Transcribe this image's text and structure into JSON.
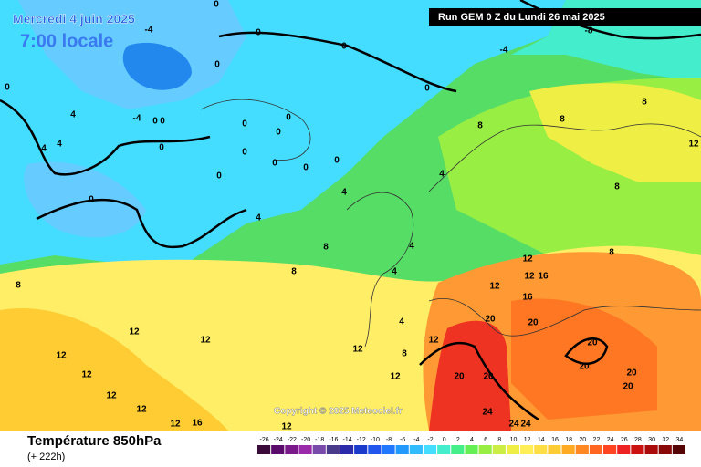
{
  "header": {
    "date": "Mercredi 4 juin 2025",
    "time": "7:00 locale",
    "run": "Run GEM 0 Z du Lundi 26 mai 2025"
  },
  "copyright": "Copyright © 2025 Meteociel.fr",
  "footer": {
    "title": "Température 850hPa",
    "lead": "(+ 222h)"
  },
  "colorbar": {
    "labels": [
      -26,
      -24,
      -22,
      -20,
      -18,
      -16,
      -14,
      -12,
      -10,
      -8,
      -6,
      -4,
      -2,
      0,
      2,
      4,
      6,
      8,
      10,
      12,
      14,
      16,
      18,
      20,
      22,
      24,
      26,
      28,
      30,
      32,
      34
    ],
    "colors": [
      "#3a0a3a",
      "#5a0a6a",
      "#7a1a8a",
      "#9a2aaa",
      "#7a4aaa",
      "#4a3a8a",
      "#2a2aaa",
      "#1a3acc",
      "#2255ee",
      "#2277ff",
      "#2299ff",
      "#33bbff",
      "#44ddff",
      "#44eecc",
      "#44ee88",
      "#66ee55",
      "#99ee44",
      "#ccee44",
      "#eeee44",
      "#ffee55",
      "#ffdd44",
      "#ffcc33",
      "#ffaa22",
      "#ff8822",
      "#ff6622",
      "#ff4422",
      "#ee2222",
      "#cc1111",
      "#aa0a0a",
      "#880808",
      "#550505"
    ]
  },
  "isotherm_labels": [
    -4,
    0,
    0,
    0,
    0,
    0,
    -4,
    -8,
    -4,
    0,
    0,
    0,
    0,
    0,
    0,
    0,
    0,
    0,
    0,
    0,
    0,
    4,
    4,
    4,
    8,
    8,
    8,
    8,
    8,
    4,
    4,
    8,
    12,
    12,
    12,
    12,
    12,
    12,
    12,
    16,
    12,
    12,
    8,
    4,
    12,
    12,
    12,
    12,
    12,
    16,
    16,
    20,
    20,
    20,
    20,
    20,
    20,
    20,
    20,
    24,
    24,
    24,
    8,
    8,
    12,
    0,
    4,
    4,
    4
  ]
}
